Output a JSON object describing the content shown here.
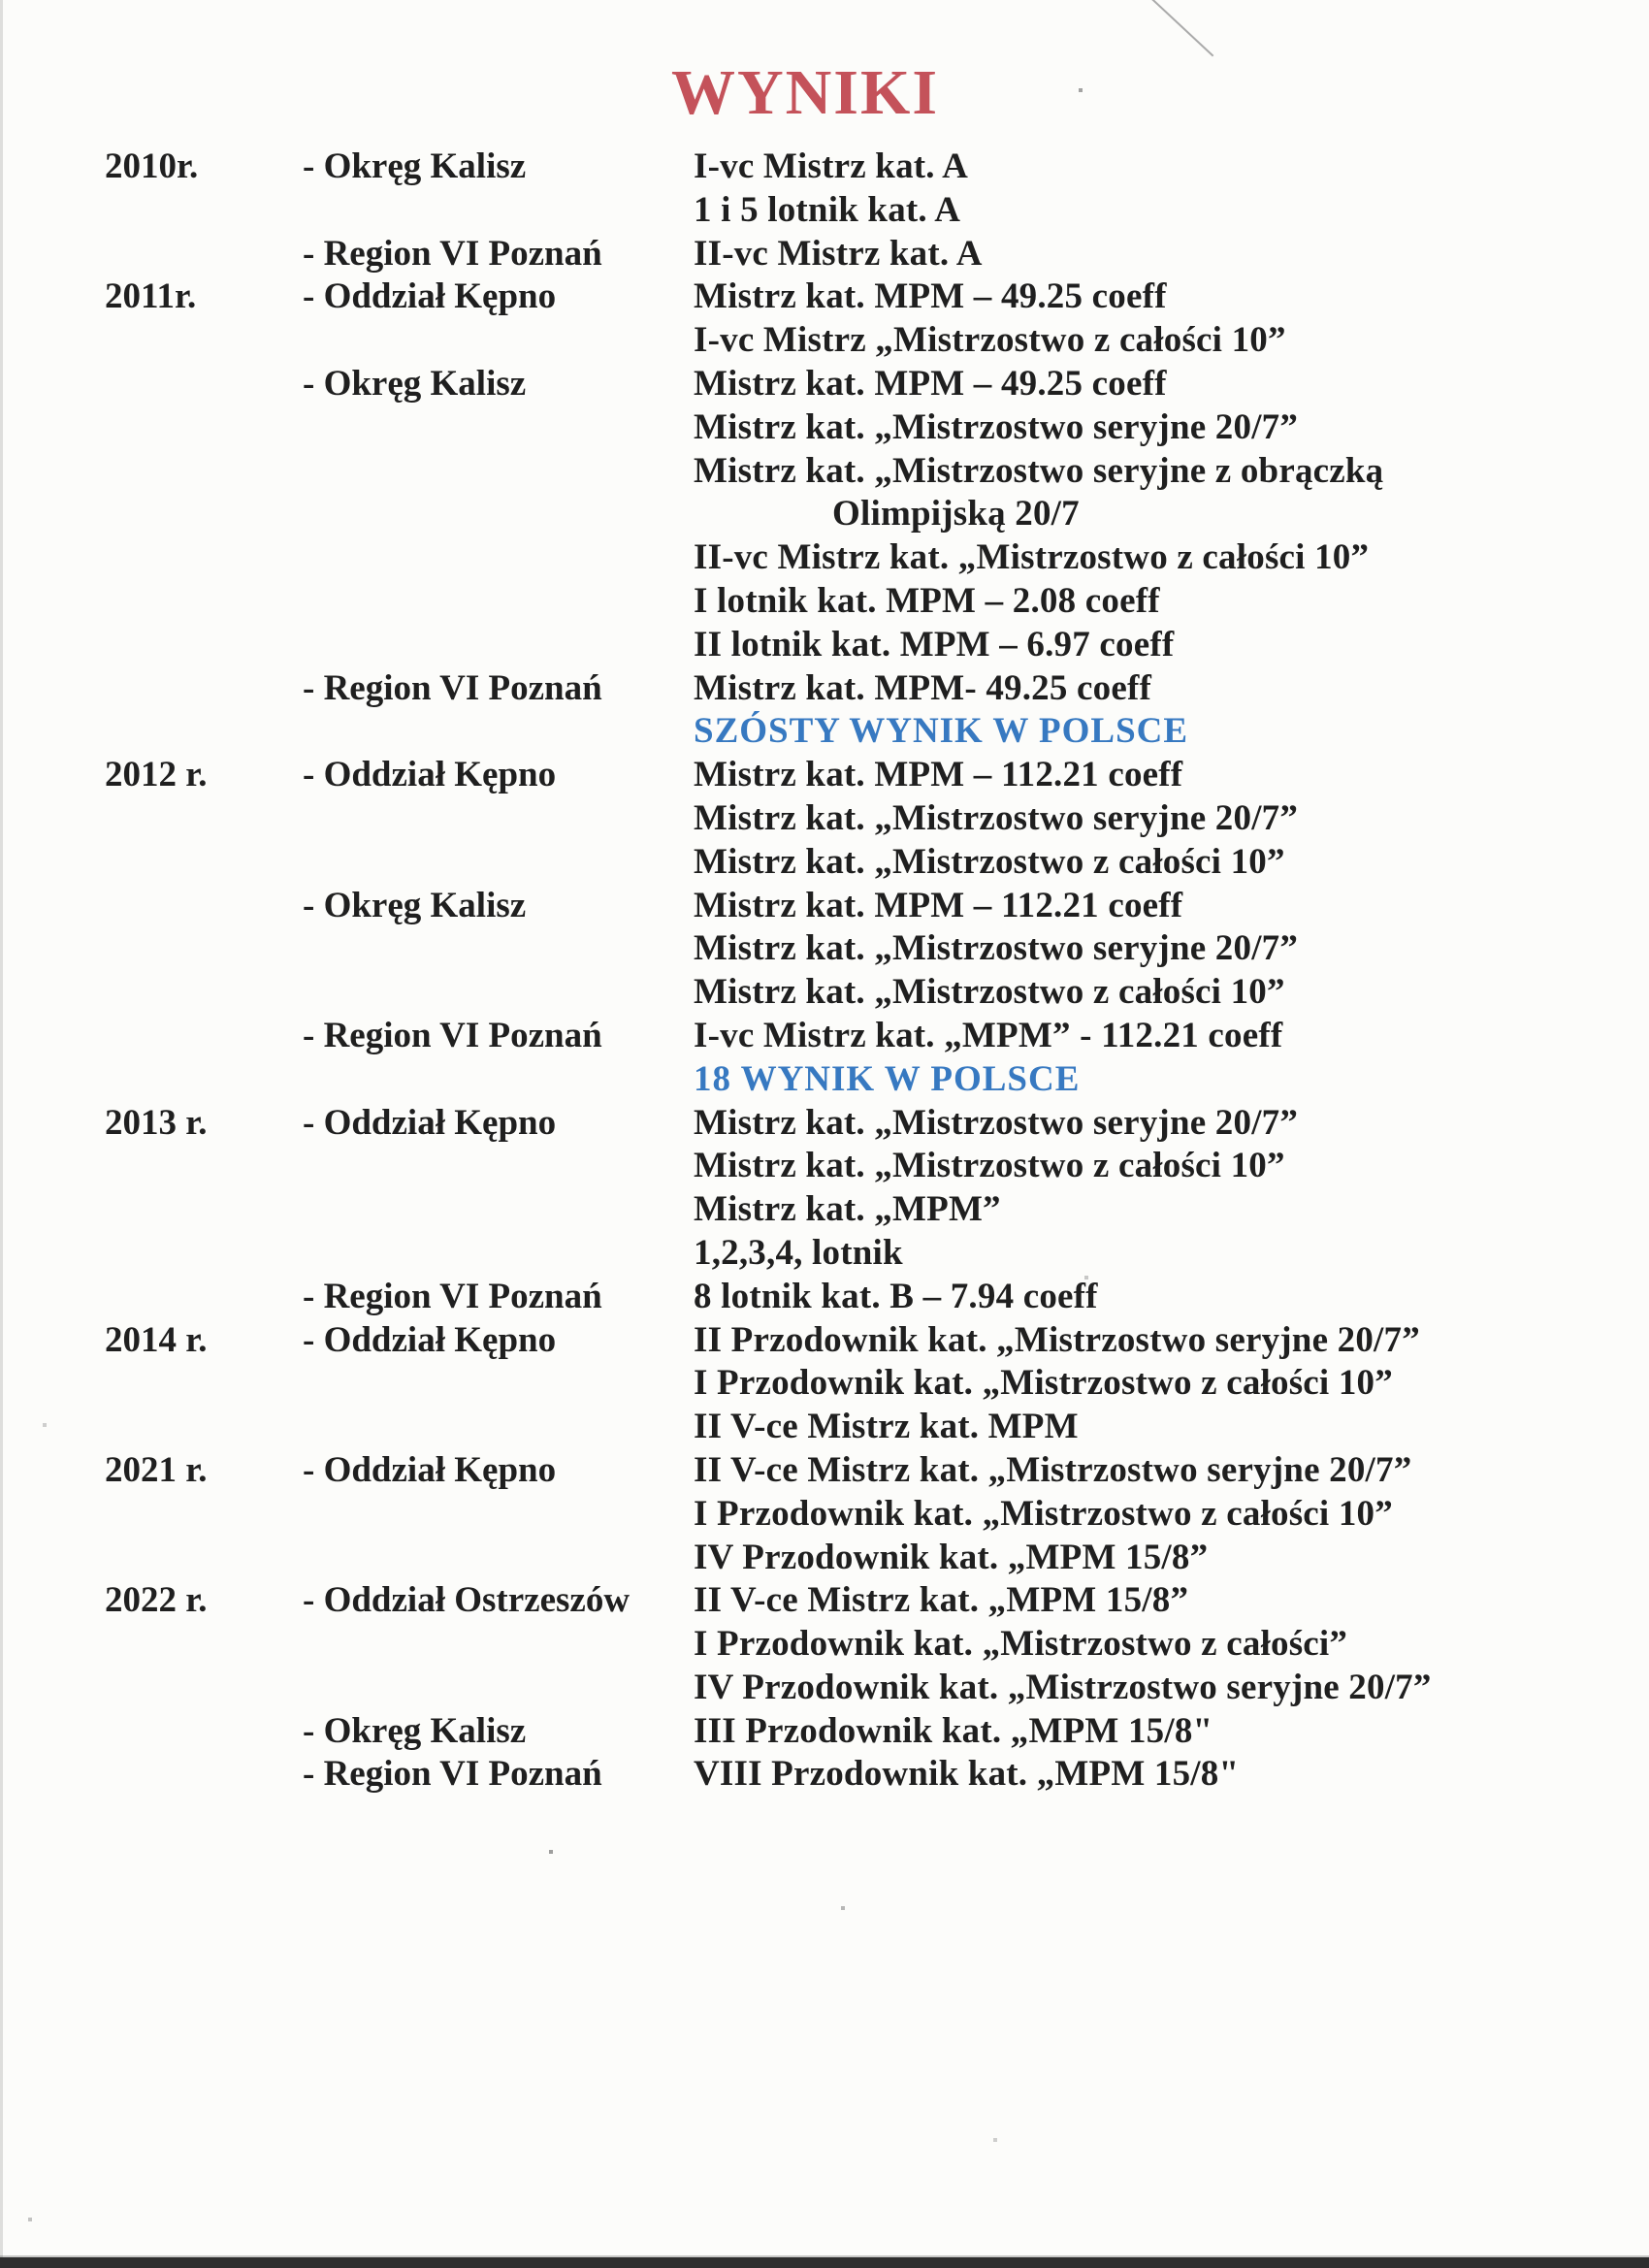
{
  "page": {
    "title": "WYNIKI",
    "colors": {
      "title_red": "#c4525a",
      "highlight_blue": "#3779c1",
      "text": "#1f1f1f",
      "background": "#fcfcfa"
    }
  },
  "results": {
    "rows": [
      {
        "year": "2010r.",
        "place": "- Okręg Kalisz",
        "result": "I-vc Mistrz kat. A"
      },
      {
        "year": "",
        "place": "",
        "result": "1 i 5 lotnik kat. A"
      },
      {
        "year": "",
        "place": "- Region VI Poznań",
        "result": "II-vc Mistrz kat. A"
      },
      {
        "year": "2011r.",
        "place": "- Oddział Kępno",
        "result": "Mistrz kat. MPM – 49.25 coeff"
      },
      {
        "year": "",
        "place": "",
        "result": "I-vc Mistrz „Mistrzostwo z całości 10”"
      },
      {
        "year": "",
        "place": "- Okręg Kalisz",
        "result": "Mistrz kat. MPM – 49.25 coeff"
      },
      {
        "year": "",
        "place": "",
        "result": "Mistrz kat. „Mistrzostwo seryjne 20/7”"
      },
      {
        "year": "",
        "place": "",
        "result": "Mistrz kat. „Mistrzostwo seryjne z obrączką"
      },
      {
        "year": "",
        "place": "",
        "result": "Olimpijską 20/7",
        "indent": true
      },
      {
        "year": "",
        "place": "",
        "result": "II-vc Mistrz kat. „Mistrzostwo z całości 10”"
      },
      {
        "year": "",
        "place": "",
        "result": "I lotnik kat. MPM – 2.08 coeff"
      },
      {
        "year": "",
        "place": "",
        "result": "II lotnik kat. MPM – 6.97 coeff"
      },
      {
        "year": "",
        "place": "- Region VI Poznań",
        "result": "Mistrz kat. MPM- 49.25 coeff"
      },
      {
        "year": "",
        "place": "",
        "result": "SZÓSTY WYNIK W POLSCE",
        "highlight": true
      },
      {
        "year": "2012 r.",
        "place": "- Oddział Kępno",
        "result": "Mistrz kat. MPM – 112.21 coeff"
      },
      {
        "year": "",
        "place": "",
        "result": "Mistrz kat. „Mistrzostwo seryjne 20/7”"
      },
      {
        "year": "",
        "place": "",
        "result": "Mistrz kat. „Mistrzostwo z całości 10”"
      },
      {
        "year": "",
        "place": "- Okręg Kalisz",
        "result": "Mistrz kat. MPM – 112.21 coeff"
      },
      {
        "year": "",
        "place": "",
        "result": "Mistrz kat. „Mistrzostwo seryjne 20/7”"
      },
      {
        "year": "",
        "place": "",
        "result": "Mistrz kat. „Mistrzostwo z całości 10”"
      },
      {
        "year": "",
        "place": "- Region VI Poznań",
        "result": "I-vc Mistrz kat. „MPM” - 112.21 coeff"
      },
      {
        "year": "",
        "place": "",
        "result": "18 WYNIK W POLSCE",
        "highlight": true
      },
      {
        "year": "2013 r.",
        "place": "- Oddział Kępno",
        "result": "Mistrz kat. „Mistrzostwo seryjne 20/7”"
      },
      {
        "year": "",
        "place": "",
        "result": "Mistrz kat. „Mistrzostwo z całości 10”"
      },
      {
        "year": "",
        "place": "",
        "result": "Mistrz kat. „MPM”"
      },
      {
        "year": "",
        "place": "",
        "result": "1,2,3,4, lotnik"
      },
      {
        "year": "",
        "place": "- Region VI Poznań",
        "result": "8 lotnik kat. B – 7.94 coeff"
      },
      {
        "year": "2014 r.",
        "place": "- Oddział Kępno",
        "result": "II Przodownik kat. „Mistrzostwo seryjne 20/7”"
      },
      {
        "year": "",
        "place": "",
        "result": "I Przodownik kat. „Mistrzostwo z całości 10”"
      },
      {
        "year": "",
        "place": "",
        "result": "II V-ce Mistrz kat. MPM"
      },
      {
        "year": "2021 r.",
        "place": "- Oddział Kępno",
        "result": "II V-ce Mistrz kat. „Mistrzostwo seryjne 20/7”"
      },
      {
        "year": "",
        "place": "",
        "result": "I Przodownik kat. „Mistrzostwo z całości 10”"
      },
      {
        "year": "",
        "place": "",
        "result": "IV Przodownik kat. „MPM 15/8”"
      },
      {
        "year": "2022 r.",
        "place": "- Oddział Ostrzeszów",
        "result": "II V-ce Mistrz kat. „MPM 15/8”"
      },
      {
        "year": "",
        "place": "",
        "result": "I Przodownik kat. „Mistrzostwo z całości”"
      },
      {
        "year": "",
        "place": "",
        "result": "IV Przodownik kat. „Mistrzostwo seryjne 20/7”"
      },
      {
        "year": "",
        "place": "- Okręg Kalisz",
        "result": "III Przodownik kat. „MPM 15/8\""
      },
      {
        "year": "",
        "place": "- Region VI Poznań",
        "result": "VIII Przodownik kat. „MPM 15/8\""
      }
    ]
  }
}
